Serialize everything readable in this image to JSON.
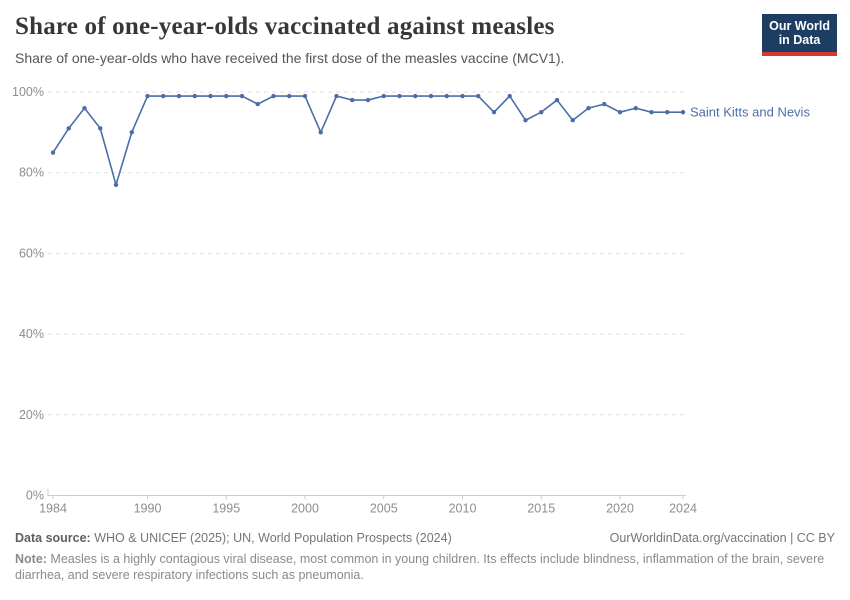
{
  "header": {
    "title": "Share of one-year-olds vaccinated against measles",
    "subtitle": "Share of one-year-olds who have received the first dose of the measles vaccine (MCV1).",
    "logo": {
      "line1": "Our World",
      "line2": "in Data"
    }
  },
  "chart_data": {
    "type": "line",
    "title": "Share of one-year-olds vaccinated against measles",
    "xlabel": "",
    "ylabel": "",
    "unit": "%",
    "xlim": [
      1984,
      2024
    ],
    "ylim": [
      0,
      100
    ],
    "xticks": [
      1984,
      1990,
      1995,
      2000,
      2005,
      2010,
      2015,
      2020,
      2024
    ],
    "yticks": [
      0,
      20,
      40,
      60,
      80,
      100
    ],
    "grid": "horizontal-dashed",
    "legend_position": "end-of-line-label",
    "series": [
      {
        "name": "Saint Kitts and Nevis",
        "color": "#4C6EA8",
        "x": [
          1984,
          1985,
          1986,
          1987,
          1988,
          1989,
          1990,
          1991,
          1992,
          1993,
          1994,
          1995,
          1996,
          1997,
          1998,
          1999,
          2000,
          2001,
          2002,
          2003,
          2004,
          2005,
          2006,
          2007,
          2008,
          2009,
          2010,
          2011,
          2012,
          2013,
          2014,
          2015,
          2016,
          2017,
          2018,
          2019,
          2020,
          2021,
          2022,
          2023,
          2024
        ],
        "values": [
          85,
          91,
          96,
          91,
          77,
          90,
          99,
          99,
          99,
          99,
          99,
          99,
          99,
          97,
          99,
          99,
          99,
          90,
          99,
          98,
          98,
          99,
          99,
          99,
          99,
          99,
          99,
          99,
          95,
          99,
          93,
          95,
          98,
          93,
          96,
          97,
          95,
          96,
          95,
          95,
          95
        ]
      }
    ]
  },
  "footer": {
    "source_label": "Data source:",
    "source_text": " WHO & UNICEF (2025); UN, World Population Prospects (2024)",
    "citation": "OurWorldinData.org/vaccination | CC BY",
    "note_label": "Note:",
    "note_text": " Measles is a highly contagious viral disease, most common in young children. Its effects include blindness, inflammation of the brain, severe diarrhea, and severe respiratory infections such as pneumonia."
  },
  "colors": {
    "accent_line": "#4C6EA8",
    "logo_bg": "#1d3d63",
    "logo_bar": "#d7382d",
    "gridline": "#e0e0e0",
    "axis": "#cccccc",
    "title_text": "#383636",
    "subtitle_text": "#555555",
    "tick_text": "#8e8e8e"
  }
}
